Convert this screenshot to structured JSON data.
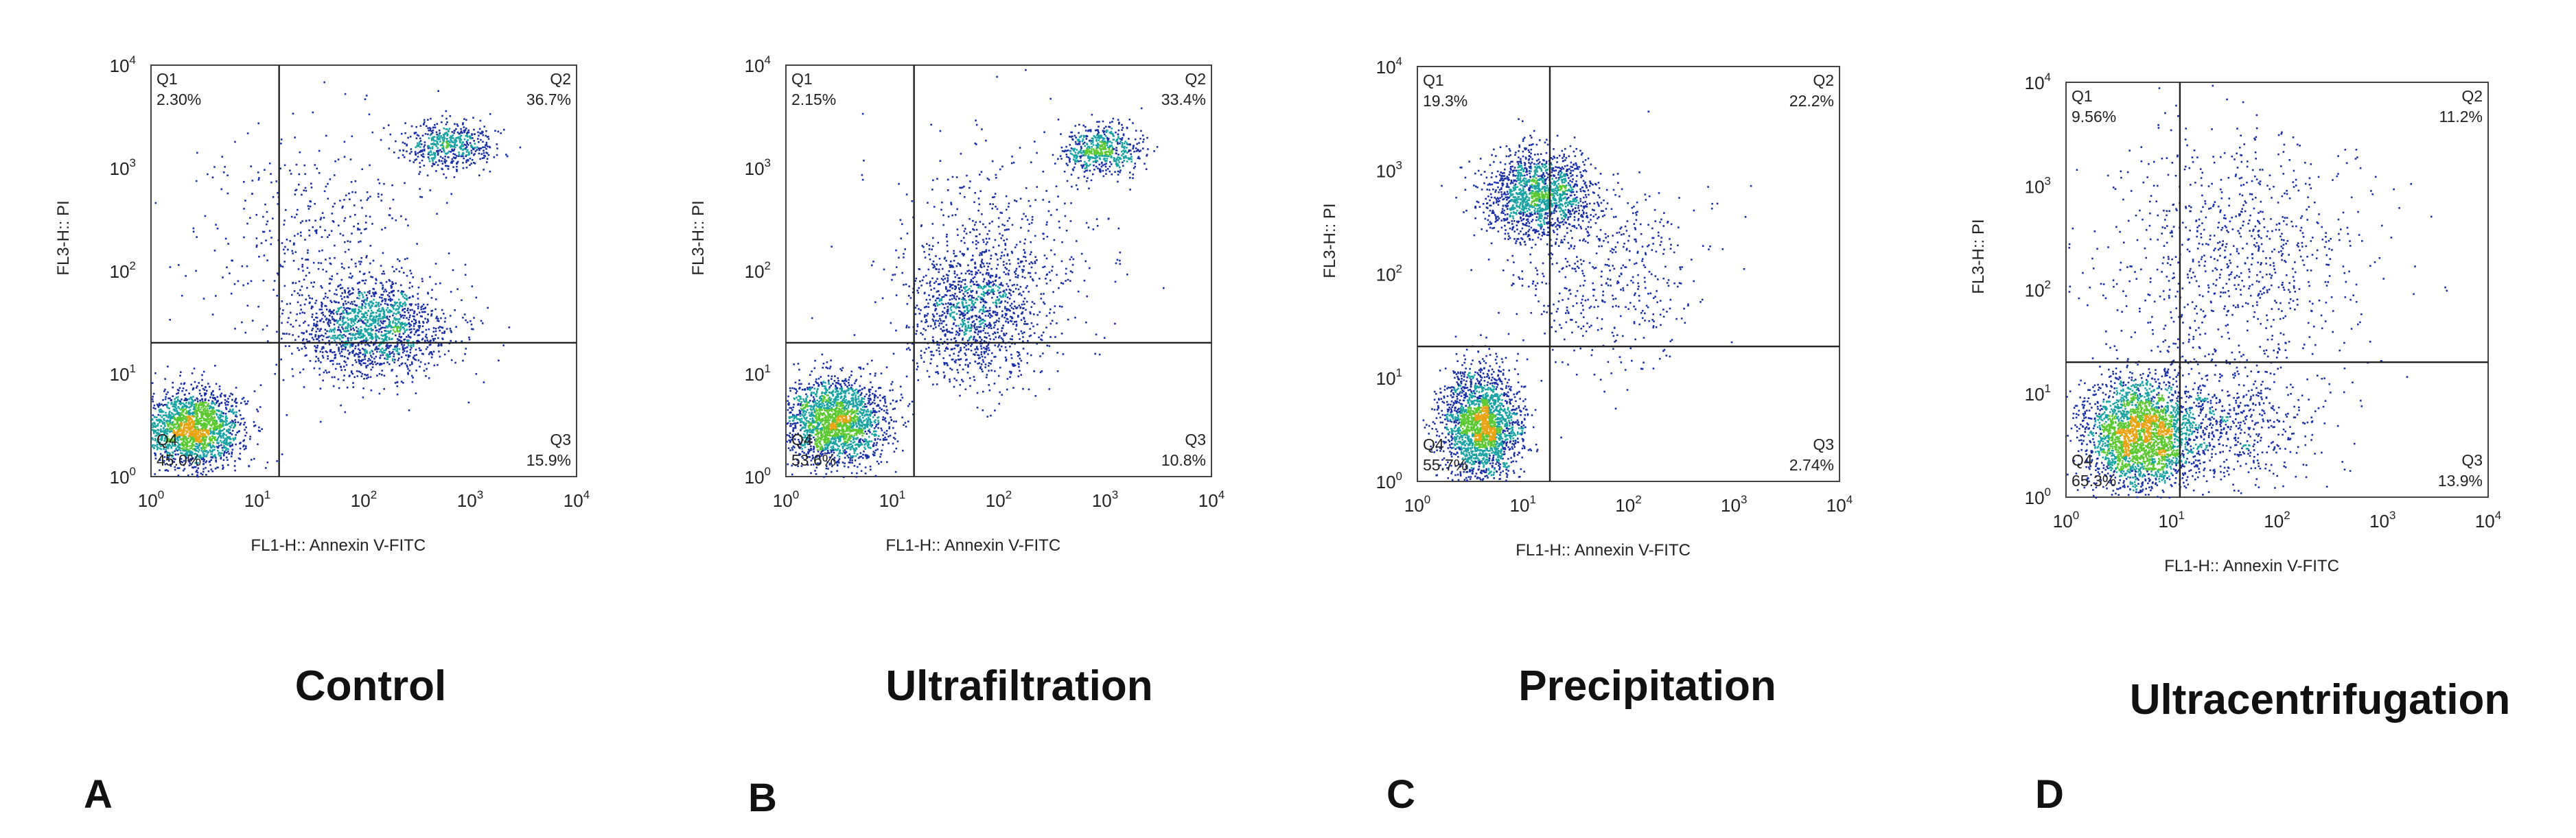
{
  "chart_data": [
    {
      "type": "scatter",
      "panel_letter": "A",
      "caption": "Control",
      "xlabel": "FL1-H:: Annexin V-FITC",
      "ylabel": "FL3-H:: PI",
      "x_scale": "log",
      "y_scale": "log",
      "xlim": [
        1,
        10000
      ],
      "ylim": [
        1,
        10000
      ],
      "x_ticks": [
        "10^0",
        "10^1",
        "10^2",
        "10^3",
        "10^4"
      ],
      "y_ticks": [
        "10^0",
        "10^1",
        "10^2",
        "10^3",
        "10^4"
      ],
      "gate": {
        "x": 16,
        "y": 20
      },
      "quadrants": [
        {
          "name": "Q1",
          "value": "2.30%"
        },
        {
          "name": "Q2",
          "value": "36.7%"
        },
        {
          "name": "Q3",
          "value": "15.9%"
        },
        {
          "name": "Q4",
          "value": "45.0%"
        }
      ],
      "populations": [
        {
          "cx": 2.5,
          "cy": 3,
          "sx": 1.8,
          "sy": 1.6,
          "n": 1900
        },
        {
          "cx": 120,
          "cy": 28,
          "sx": 2.6,
          "sy": 1.8,
          "n": 1500
        },
        {
          "cx": 600,
          "cy": 1700,
          "sx": 1.7,
          "sy": 1.35,
          "n": 520
        },
        {
          "cx": 40,
          "cy": 200,
          "sx": 4,
          "sy": 4,
          "n": 450
        }
      ]
    },
    {
      "type": "scatter",
      "panel_letter": "B",
      "caption": "Ultrafiltration",
      "xlabel": "FL1-H:: Annexin V-FITC",
      "ylabel": "FL3-H:: PI",
      "x_scale": "log",
      "y_scale": "log",
      "xlim": [
        1,
        10000
      ],
      "ylim": [
        1,
        10000
      ],
      "x_ticks": [
        "10^0",
        "10^1",
        "10^2",
        "10^3",
        "10^4"
      ],
      "y_ticks": [
        "10^0",
        "10^1",
        "10^2",
        "10^3",
        "10^4"
      ],
      "gate": {
        "x": 16,
        "y": 20
      },
      "quadrants": [
        {
          "name": "Q1",
          "value": "2.15%"
        },
        {
          "name": "Q2",
          "value": "33.4%"
        },
        {
          "name": "Q3",
          "value": "10.8%"
        },
        {
          "name": "Q4",
          "value": "53.6%"
        }
      ],
      "populations": [
        {
          "cx": 2.8,
          "cy": 3.5,
          "sx": 1.9,
          "sy": 1.7,
          "n": 2100
        },
        {
          "cx": 60,
          "cy": 40,
          "sx": 2.2,
          "sy": 2.4,
          "n": 1200
        },
        {
          "cx": 900,
          "cy": 1500,
          "sx": 1.6,
          "sy": 1.35,
          "n": 600
        },
        {
          "cx": 100,
          "cy": 200,
          "sx": 4,
          "sy": 4,
          "n": 350
        }
      ]
    },
    {
      "type": "scatter",
      "panel_letter": "C",
      "caption": "Precipitation",
      "xlabel": "FL1-H:: Annexin V-FITC",
      "ylabel": "FL3-H:: PI",
      "x_scale": "log",
      "y_scale": "log",
      "xlim": [
        1,
        10000
      ],
      "ylim": [
        1,
        10000
      ],
      "x_ticks": [
        "10^0",
        "10^1",
        "10^2",
        "10^3",
        "10^4"
      ],
      "y_ticks": [
        "10^0",
        "10^1",
        "10^2",
        "10^3",
        "10^4"
      ],
      "gate": {
        "x": 18,
        "y": 20
      },
      "quadrants": [
        {
          "name": "Q1",
          "value": "19.3%"
        },
        {
          "name": "Q2",
          "value": "22.2%"
        },
        {
          "name": "Q3",
          "value": "2.74%"
        },
        {
          "name": "Q4",
          "value": "55.7%"
        }
      ],
      "populations": [
        {
          "cx": 4,
          "cy": 3.5,
          "sx": 1.6,
          "sy": 2.0,
          "n": 2200
        },
        {
          "cx": 14,
          "cy": 600,
          "sx": 1.9,
          "sy": 1.7,
          "n": 1500
        },
        {
          "cx": 60,
          "cy": 100,
          "sx": 3.5,
          "sy": 3.5,
          "n": 500
        }
      ]
    },
    {
      "type": "scatter",
      "panel_letter": "D",
      "caption": "Ultracentrifugation",
      "xlabel": "FL1-H:: Annexin V-FITC",
      "ylabel": "FL3-H:: PI",
      "x_scale": "log",
      "y_scale": "log",
      "xlim": [
        1,
        10000
      ],
      "ylim": [
        1,
        10000
      ],
      "x_ticks": [
        "10^0",
        "10^1",
        "10^2",
        "10^3",
        "10^4"
      ],
      "y_ticks": [
        "10^0",
        "10^1",
        "10^2",
        "10^3",
        "10^4"
      ],
      "gate": {
        "x": 12,
        "y": 20
      },
      "quadrants": [
        {
          "name": "Q1",
          "value": "9.56%"
        },
        {
          "name": "Q2",
          "value": "11.2%"
        },
        {
          "name": "Q3",
          "value": "13.9%"
        },
        {
          "name": "Q4",
          "value": "65.3%"
        }
      ],
      "populations": [
        {
          "cx": 5,
          "cy": 4,
          "sx": 2.0,
          "sy": 2.0,
          "n": 2600
        },
        {
          "cx": 40,
          "cy": 200,
          "sx": 5,
          "sy": 5,
          "n": 900
        },
        {
          "cx": 30,
          "cy": 5,
          "sx": 3.5,
          "sy": 2.2,
          "n": 600
        }
      ]
    }
  ],
  "colors": {
    "dot_sparse": "#1a2fa6",
    "dot_medium": "#1aa3a3",
    "dot_dense": "#5cc832",
    "dot_core": "#e8a415",
    "gate_line": "#222222"
  }
}
